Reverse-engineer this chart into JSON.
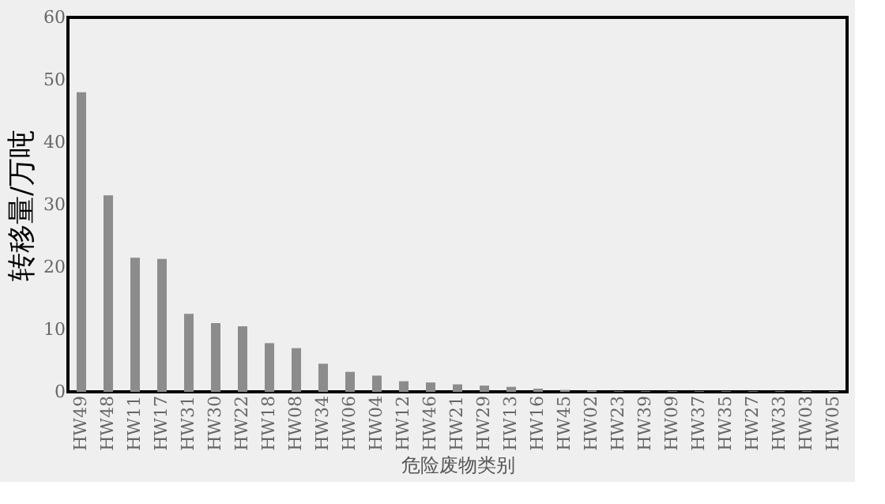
{
  "chart_data": {
    "type": "bar",
    "xlabel": "危险废物类别",
    "ylabel": "转移量/万吨",
    "categories": [
      "HW49",
      "HW48",
      "HW11",
      "HW17",
      "HW31",
      "HW30",
      "HW22",
      "HW18",
      "HW08",
      "HW34",
      "HW06",
      "HW04",
      "HW12",
      "HW46",
      "HW21",
      "HW29",
      "HW13",
      "HW16",
      "HW45",
      "HW02",
      "HW23",
      "HW39",
      "HW09",
      "HW37",
      "HW35",
      "HW27",
      "HW33",
      "HW03",
      "HW05"
    ],
    "values": [
      48,
      31.5,
      21.5,
      21.3,
      12.5,
      11,
      10.5,
      7.8,
      7,
      4.5,
      3.2,
      2.6,
      1.7,
      1.5,
      1.2,
      1,
      0.8,
      0.5,
      0.3,
      0.2,
      0.1,
      0.1,
      0.1,
      0.1,
      0.1,
      0.1,
      0.1,
      0.1,
      0.1
    ],
    "color": "#8c8c8c",
    "ylim": [
      0,
      60
    ],
    "yticks": [
      0,
      10,
      20,
      30,
      40,
      50,
      60
    ],
    "grid": false
  }
}
